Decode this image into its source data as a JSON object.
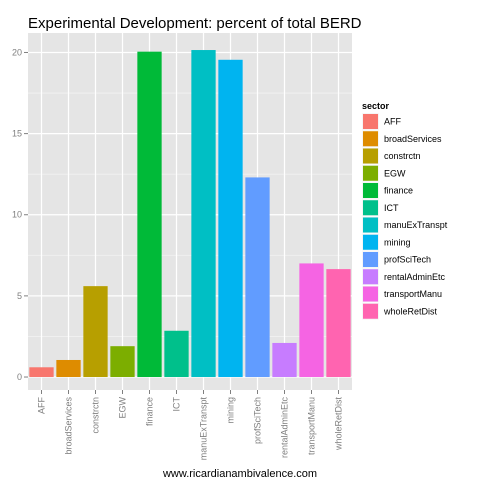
{
  "chart_data": {
    "type": "bar",
    "title": "Experimental Development: percent of total BERD",
    "xlabel": "",
    "ylabel": "",
    "categories": [
      "AFF",
      "broadServices",
      "constrctn",
      "EGW",
      "finance",
      "ICT",
      "manuExTranspt",
      "mining",
      "profSciTech",
      "rentalAdminEtc",
      "transportManu",
      "wholeRetDist"
    ],
    "values": [
      0.6,
      1.05,
      5.6,
      1.9,
      20.05,
      2.85,
      20.15,
      19.55,
      12.3,
      2.1,
      7.0,
      6.65
    ],
    "colors": [
      "#F8766D",
      "#DE8C00",
      "#B79F00",
      "#7CAE00",
      "#00BA38",
      "#00C08B",
      "#00BFC4",
      "#00B4F0",
      "#619CFF",
      "#C77CFF",
      "#F564E3",
      "#FF64B0"
    ],
    "ylim": [
      -0.8,
      21.2
    ],
    "yticks": [
      0,
      5,
      10,
      15,
      20
    ],
    "grid": true,
    "legend": {
      "title": "sector",
      "placement": "right"
    }
  },
  "caption": "www.ricardianambivalence.com"
}
